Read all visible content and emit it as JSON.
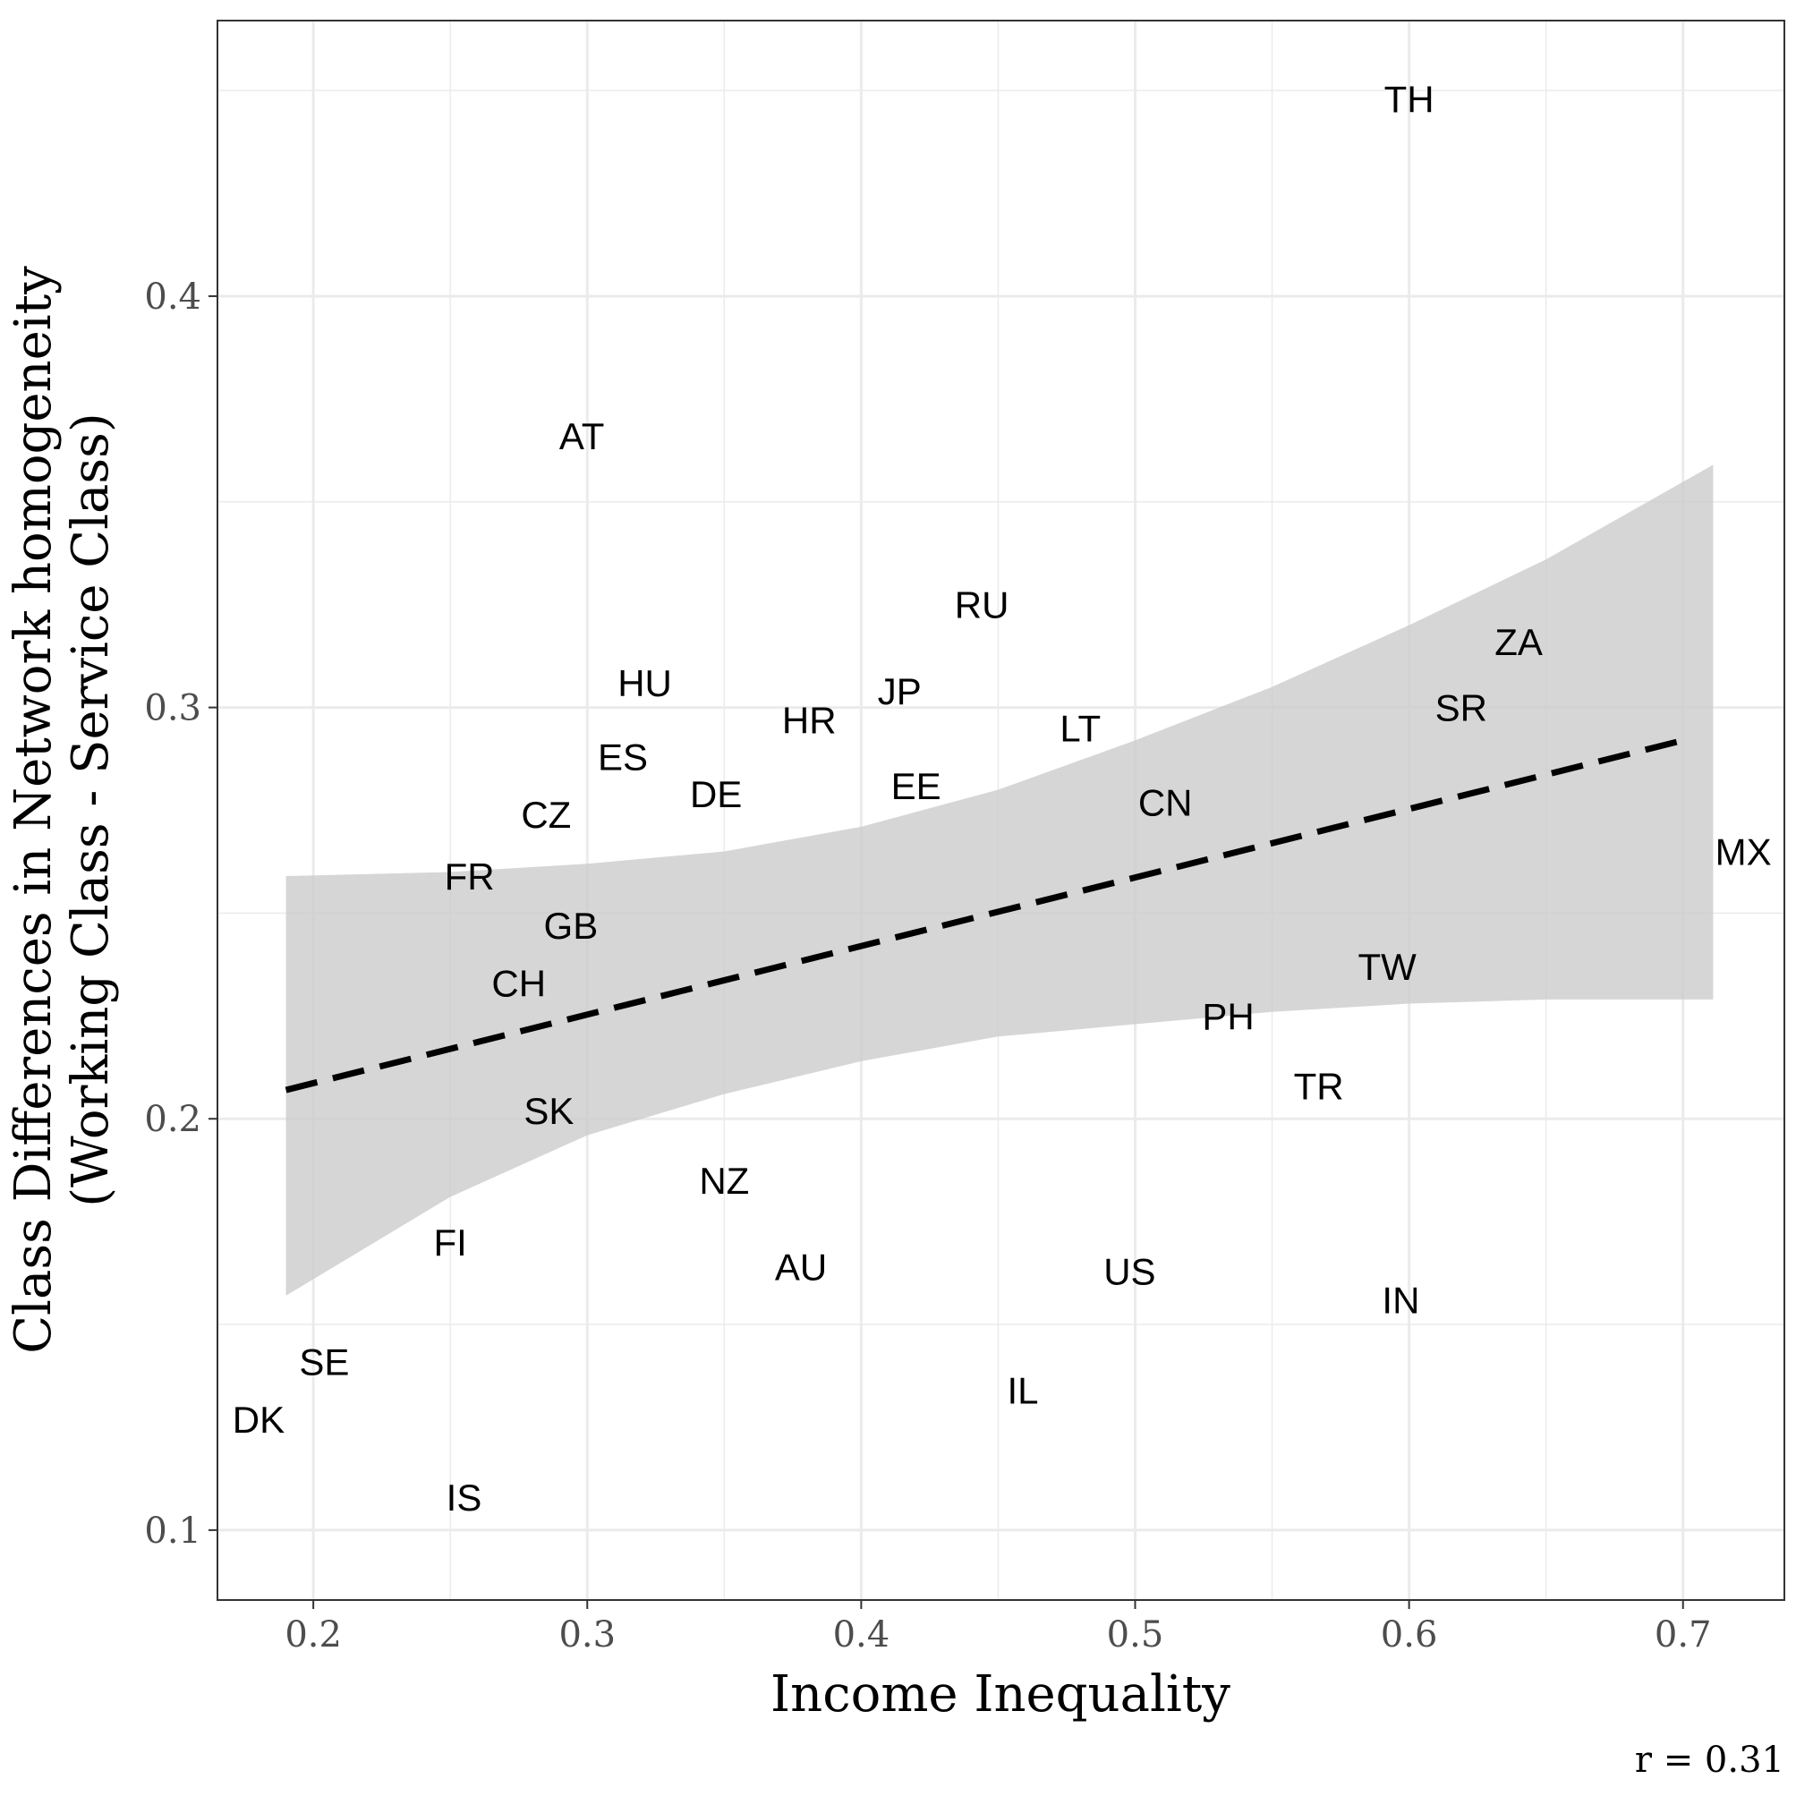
{
  "chart_data": {
    "type": "scatter",
    "xlabel": "Income Inequality",
    "ylabel_lines": [
      "Class Differences in Network homogeneity",
      "(Working Class - Service Class)"
    ],
    "xlim": [
      0.165,
      0.737
    ],
    "ylim": [
      0.083,
      0.467
    ],
    "x_ticks": [
      0.2,
      0.3,
      0.4,
      0.5,
      0.6,
      0.7
    ],
    "x_tick_labels": [
      "0.2",
      "0.3",
      "0.4",
      "0.5",
      "0.6",
      "0.7"
    ],
    "x_minor_ticks": [
      0.25,
      0.35,
      0.45,
      0.55,
      0.65
    ],
    "y_ticks": [
      0.1,
      0.2,
      0.3,
      0.4
    ],
    "y_tick_labels": [
      "0.1",
      "0.2",
      "0.3",
      "0.4"
    ],
    "y_minor_ticks": [
      0.15,
      0.25,
      0.35,
      0.45
    ],
    "grid": true,
    "points": [
      {
        "label": "TH",
        "x": 0.6,
        "y": 0.448
      },
      {
        "label": "AT",
        "x": 0.298,
        "y": 0.366
      },
      {
        "label": "RU",
        "x": 0.444,
        "y": 0.325
      },
      {
        "label": "ZA",
        "x": 0.64,
        "y": 0.316
      },
      {
        "label": "HU",
        "x": 0.321,
        "y": 0.306
      },
      {
        "label": "JP",
        "x": 0.414,
        "y": 0.304
      },
      {
        "label": "SR",
        "x": 0.619,
        "y": 0.3
      },
      {
        "label": "HR",
        "x": 0.381,
        "y": 0.297
      },
      {
        "label": "LT",
        "x": 0.48,
        "y": 0.295
      },
      {
        "label": "ES",
        "x": 0.313,
        "y": 0.288
      },
      {
        "label": "EE",
        "x": 0.42,
        "y": 0.281
      },
      {
        "label": "DE",
        "x": 0.347,
        "y": 0.279
      },
      {
        "label": "CN",
        "x": 0.511,
        "y": 0.277
      },
      {
        "label": "CZ",
        "x": 0.285,
        "y": 0.274
      },
      {
        "label": "MX",
        "x": 0.722,
        "y": 0.265
      },
      {
        "label": "FR",
        "x": 0.257,
        "y": 0.259
      },
      {
        "label": "GB",
        "x": 0.294,
        "y": 0.247
      },
      {
        "label": "TW",
        "x": 0.592,
        "y": 0.237
      },
      {
        "label": "CH",
        "x": 0.275,
        "y": 0.233
      },
      {
        "label": "PH",
        "x": 0.534,
        "y": 0.225
      },
      {
        "label": "TR",
        "x": 0.567,
        "y": 0.208
      },
      {
        "label": "SK",
        "x": 0.286,
        "y": 0.202
      },
      {
        "label": "NZ",
        "x": 0.35,
        "y": 0.185
      },
      {
        "label": "FI",
        "x": 0.25,
        "y": 0.17
      },
      {
        "label": "AU",
        "x": 0.378,
        "y": 0.164
      },
      {
        "label": "US",
        "x": 0.498,
        "y": 0.163
      },
      {
        "label": "IN",
        "x": 0.597,
        "y": 0.156
      },
      {
        "label": "SE",
        "x": 0.204,
        "y": 0.141
      },
      {
        "label": "IL",
        "x": 0.459,
        "y": 0.134
      },
      {
        "label": "DK",
        "x": 0.18,
        "y": 0.127
      },
      {
        "label": "IS",
        "x": 0.255,
        "y": 0.108
      }
    ],
    "trend": {
      "style": "dashed",
      "x": [
        0.19,
        0.7
      ],
      "y": [
        0.207,
        0.292
      ]
    },
    "confidence_band": {
      "x": [
        0.19,
        0.25,
        0.3,
        0.35,
        0.4,
        0.45,
        0.5,
        0.55,
        0.6,
        0.65,
        0.711
      ],
      "lower": [
        0.157,
        0.181,
        0.196,
        0.206,
        0.214,
        0.22,
        0.223,
        0.226,
        0.228,
        0.229,
        0.229
      ],
      "upper": [
        0.259,
        0.26,
        0.262,
        0.265,
        0.271,
        0.28,
        0.292,
        0.305,
        0.32,
        0.336,
        0.359
      ]
    },
    "annotation": "r =  0.31"
  }
}
